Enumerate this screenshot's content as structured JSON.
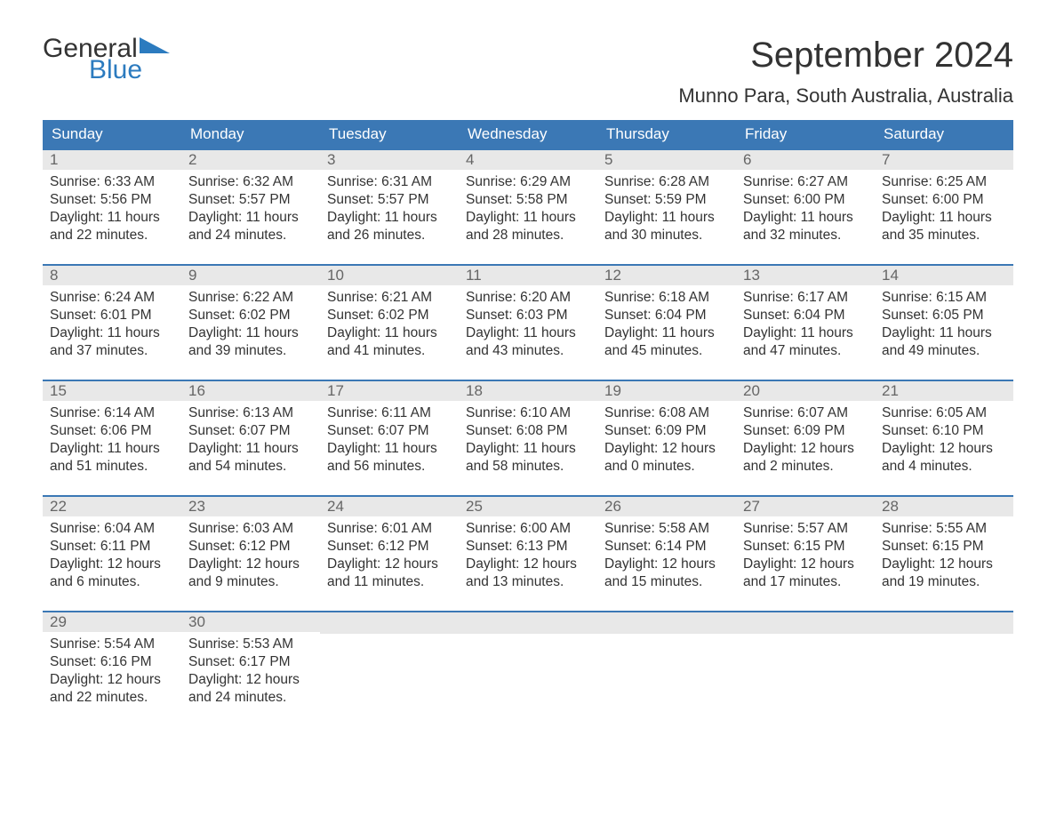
{
  "logo": {
    "text_general": "General",
    "text_blue": "Blue",
    "flag_color": "#2c7bbf"
  },
  "title": "September 2024",
  "location": "Munno Para, South Australia, Australia",
  "colors": {
    "header_bg": "#3b78b5",
    "header_text": "#ffffff",
    "daynum_bg": "#e8e8e8",
    "daynum_text": "#666666",
    "body_text": "#333333",
    "rule": "#3b78b5",
    "page_bg": "#ffffff"
  },
  "font": {
    "family": "Arial",
    "title_size_pt": 30,
    "location_size_pt": 16,
    "weekday_size_pt": 13,
    "body_size_pt": 11.5
  },
  "weekdays": [
    "Sunday",
    "Monday",
    "Tuesday",
    "Wednesday",
    "Thursday",
    "Friday",
    "Saturday"
  ],
  "weeks": [
    [
      {
        "n": "1",
        "sunrise": "Sunrise: 6:33 AM",
        "sunset": "Sunset: 5:56 PM",
        "dl1": "Daylight: 11 hours",
        "dl2": "and 22 minutes."
      },
      {
        "n": "2",
        "sunrise": "Sunrise: 6:32 AM",
        "sunset": "Sunset: 5:57 PM",
        "dl1": "Daylight: 11 hours",
        "dl2": "and 24 minutes."
      },
      {
        "n": "3",
        "sunrise": "Sunrise: 6:31 AM",
        "sunset": "Sunset: 5:57 PM",
        "dl1": "Daylight: 11 hours",
        "dl2": "and 26 minutes."
      },
      {
        "n": "4",
        "sunrise": "Sunrise: 6:29 AM",
        "sunset": "Sunset: 5:58 PM",
        "dl1": "Daylight: 11 hours",
        "dl2": "and 28 minutes."
      },
      {
        "n": "5",
        "sunrise": "Sunrise: 6:28 AM",
        "sunset": "Sunset: 5:59 PM",
        "dl1": "Daylight: 11 hours",
        "dl2": "and 30 minutes."
      },
      {
        "n": "6",
        "sunrise": "Sunrise: 6:27 AM",
        "sunset": "Sunset: 6:00 PM",
        "dl1": "Daylight: 11 hours",
        "dl2": "and 32 minutes."
      },
      {
        "n": "7",
        "sunrise": "Sunrise: 6:25 AM",
        "sunset": "Sunset: 6:00 PM",
        "dl1": "Daylight: 11 hours",
        "dl2": "and 35 minutes."
      }
    ],
    [
      {
        "n": "8",
        "sunrise": "Sunrise: 6:24 AM",
        "sunset": "Sunset: 6:01 PM",
        "dl1": "Daylight: 11 hours",
        "dl2": "and 37 minutes."
      },
      {
        "n": "9",
        "sunrise": "Sunrise: 6:22 AM",
        "sunset": "Sunset: 6:02 PM",
        "dl1": "Daylight: 11 hours",
        "dl2": "and 39 minutes."
      },
      {
        "n": "10",
        "sunrise": "Sunrise: 6:21 AM",
        "sunset": "Sunset: 6:02 PM",
        "dl1": "Daylight: 11 hours",
        "dl2": "and 41 minutes."
      },
      {
        "n": "11",
        "sunrise": "Sunrise: 6:20 AM",
        "sunset": "Sunset: 6:03 PM",
        "dl1": "Daylight: 11 hours",
        "dl2": "and 43 minutes."
      },
      {
        "n": "12",
        "sunrise": "Sunrise: 6:18 AM",
        "sunset": "Sunset: 6:04 PM",
        "dl1": "Daylight: 11 hours",
        "dl2": "and 45 minutes."
      },
      {
        "n": "13",
        "sunrise": "Sunrise: 6:17 AM",
        "sunset": "Sunset: 6:04 PM",
        "dl1": "Daylight: 11 hours",
        "dl2": "and 47 minutes."
      },
      {
        "n": "14",
        "sunrise": "Sunrise: 6:15 AM",
        "sunset": "Sunset: 6:05 PM",
        "dl1": "Daylight: 11 hours",
        "dl2": "and 49 minutes."
      }
    ],
    [
      {
        "n": "15",
        "sunrise": "Sunrise: 6:14 AM",
        "sunset": "Sunset: 6:06 PM",
        "dl1": "Daylight: 11 hours",
        "dl2": "and 51 minutes."
      },
      {
        "n": "16",
        "sunrise": "Sunrise: 6:13 AM",
        "sunset": "Sunset: 6:07 PM",
        "dl1": "Daylight: 11 hours",
        "dl2": "and 54 minutes."
      },
      {
        "n": "17",
        "sunrise": "Sunrise: 6:11 AM",
        "sunset": "Sunset: 6:07 PM",
        "dl1": "Daylight: 11 hours",
        "dl2": "and 56 minutes."
      },
      {
        "n": "18",
        "sunrise": "Sunrise: 6:10 AM",
        "sunset": "Sunset: 6:08 PM",
        "dl1": "Daylight: 11 hours",
        "dl2": "and 58 minutes."
      },
      {
        "n": "19",
        "sunrise": "Sunrise: 6:08 AM",
        "sunset": "Sunset: 6:09 PM",
        "dl1": "Daylight: 12 hours",
        "dl2": "and 0 minutes."
      },
      {
        "n": "20",
        "sunrise": "Sunrise: 6:07 AM",
        "sunset": "Sunset: 6:09 PM",
        "dl1": "Daylight: 12 hours",
        "dl2": "and 2 minutes."
      },
      {
        "n": "21",
        "sunrise": "Sunrise: 6:05 AM",
        "sunset": "Sunset: 6:10 PM",
        "dl1": "Daylight: 12 hours",
        "dl2": "and 4 minutes."
      }
    ],
    [
      {
        "n": "22",
        "sunrise": "Sunrise: 6:04 AM",
        "sunset": "Sunset: 6:11 PM",
        "dl1": "Daylight: 12 hours",
        "dl2": "and 6 minutes."
      },
      {
        "n": "23",
        "sunrise": "Sunrise: 6:03 AM",
        "sunset": "Sunset: 6:12 PM",
        "dl1": "Daylight: 12 hours",
        "dl2": "and 9 minutes."
      },
      {
        "n": "24",
        "sunrise": "Sunrise: 6:01 AM",
        "sunset": "Sunset: 6:12 PM",
        "dl1": "Daylight: 12 hours",
        "dl2": "and 11 minutes."
      },
      {
        "n": "25",
        "sunrise": "Sunrise: 6:00 AM",
        "sunset": "Sunset: 6:13 PM",
        "dl1": "Daylight: 12 hours",
        "dl2": "and 13 minutes."
      },
      {
        "n": "26",
        "sunrise": "Sunrise: 5:58 AM",
        "sunset": "Sunset: 6:14 PM",
        "dl1": "Daylight: 12 hours",
        "dl2": "and 15 minutes."
      },
      {
        "n": "27",
        "sunrise": "Sunrise: 5:57 AM",
        "sunset": "Sunset: 6:15 PM",
        "dl1": "Daylight: 12 hours",
        "dl2": "and 17 minutes."
      },
      {
        "n": "28",
        "sunrise": "Sunrise: 5:55 AM",
        "sunset": "Sunset: 6:15 PM",
        "dl1": "Daylight: 12 hours",
        "dl2": "and 19 minutes."
      }
    ],
    [
      {
        "n": "29",
        "sunrise": "Sunrise: 5:54 AM",
        "sunset": "Sunset: 6:16 PM",
        "dl1": "Daylight: 12 hours",
        "dl2": "and 22 minutes."
      },
      {
        "n": "30",
        "sunrise": "Sunrise: 5:53 AM",
        "sunset": "Sunset: 6:17 PM",
        "dl1": "Daylight: 12 hours",
        "dl2": "and 24 minutes."
      },
      {
        "empty": true
      },
      {
        "empty": true
      },
      {
        "empty": true
      },
      {
        "empty": true
      },
      {
        "empty": true
      }
    ]
  ]
}
